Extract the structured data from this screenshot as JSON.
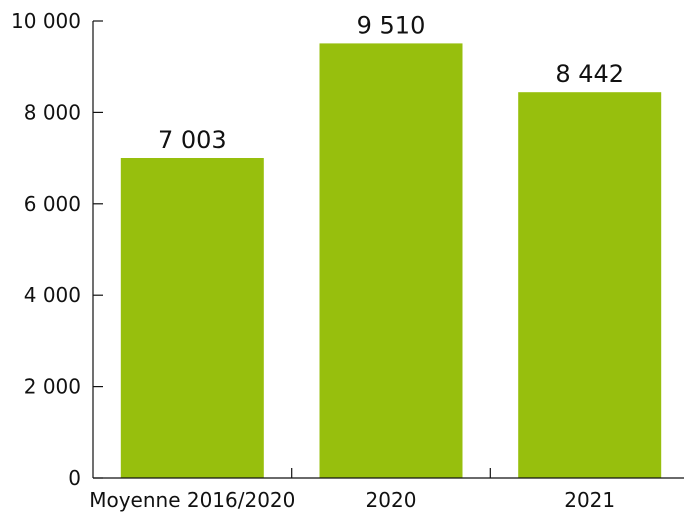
{
  "chart_data": {
    "type": "bar",
    "title": "",
    "xlabel": "",
    "ylabel": "",
    "categories": [
      "Moyenne 2016/2020",
      "2020",
      "2021"
    ],
    "values": [
      7003,
      9510,
      8442
    ],
    "value_labels": [
      "7 003",
      "9 510",
      "8 442"
    ],
    "ylim": [
      0,
      10000
    ],
    "y_ticks": [
      0,
      2000,
      4000,
      6000,
      8000,
      10000
    ],
    "y_tick_labels": [
      "0",
      "2 000",
      "4 000",
      "6 000",
      "8 000",
      "10 000"
    ],
    "grid": false,
    "legend": "none",
    "bar_color": "#97bf0d",
    "axis_color": "#111111"
  }
}
